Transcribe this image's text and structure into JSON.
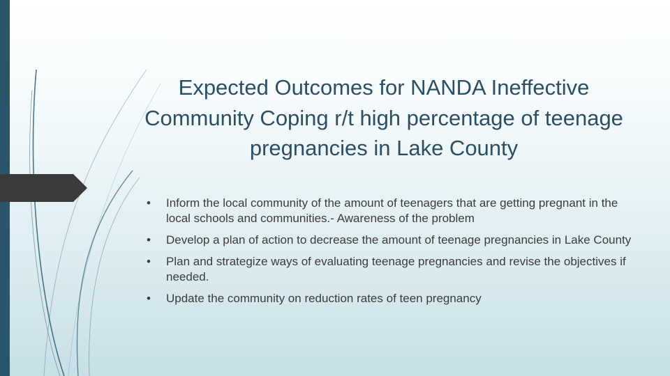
{
  "slide": {
    "title": "Expected Outcomes for NANDA Ineffective Community Coping r/t high percentage of teenage pregnancies in Lake County",
    "bullet_glyph": "•",
    "bullets": [
      "Inform the local community of the amount of teenagers that are getting pregnant in the local schools and communities.- Awareness of the problem",
      "Develop a plan of action to decrease the amount of teenage pregnancies in Lake County",
      "Plan and strategize ways of evaluating  teenage pregnancies and revise the objectives if needed.",
      "Update the community on reduction rates of teen pregnancy"
    ]
  },
  "colors": {
    "left_bar": "#2a566c",
    "title": "#2b4f67",
    "body_text": "#3c3c3c",
    "tab_marker": "#3a3a3a",
    "swoosh": "#2f5f76"
  }
}
